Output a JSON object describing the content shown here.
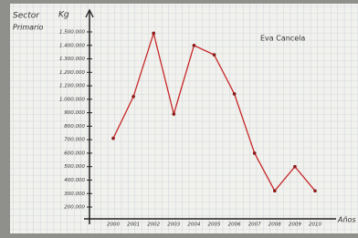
{
  "chart_data": {
    "type": "line",
    "title_lines": [
      "Sector",
      "Primario"
    ],
    "y_label": "Kg",
    "x_label": "Años",
    "annotation": "Eva Cancela",
    "categories": [
      "2000",
      "2001",
      "2002",
      "2003",
      "2004",
      "2005",
      "2006",
      "2007",
      "2008",
      "2009",
      "2010"
    ],
    "values": [
      710000,
      1020000,
      1490000,
      890000,
      1400000,
      1330000,
      1040000,
      600000,
      320000,
      500000,
      320000
    ],
    "color": "#c62828",
    "ylim": [
      100000,
      1550000
    ],
    "yticks": [
      {
        "value": 200000,
        "label": "200.000"
      },
      {
        "value": 300000,
        "label": "300.000"
      },
      {
        "value": 400000,
        "label": "400.000"
      },
      {
        "value": 500000,
        "label": "500.000"
      },
      {
        "value": 600000,
        "label": "600.000"
      },
      {
        "value": 700000,
        "label": "700.000"
      },
      {
        "value": 800000,
        "label": "800.000"
      },
      {
        "value": 900000,
        "label": "900.000"
      },
      {
        "value": 1000000,
        "label": "1.000.000"
      },
      {
        "value": 1100000,
        "label": "1.100.000"
      },
      {
        "value": 1200000,
        "label": "1.200.000"
      },
      {
        "value": 1300000,
        "label": "1.300.000"
      },
      {
        "value": 1400000,
        "label": "1.400.000"
      },
      {
        "value": 1500000,
        "label": "1.500.000"
      }
    ]
  }
}
